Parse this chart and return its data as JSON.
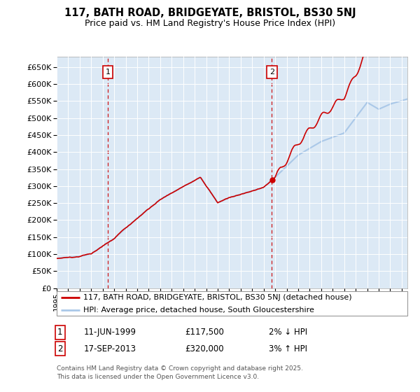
{
  "title_line1": "117, BATH ROAD, BRIDGEYATE, BRISTOL, BS30 5NJ",
  "title_line2": "Price paid vs. HM Land Registry's House Price Index (HPI)",
  "sale1_date": "11-JUN-1999",
  "sale1_price": "£117,500",
  "sale1_note": "2% ↓ HPI",
  "sale2_date": "17-SEP-2013",
  "sale2_price": "£320,000",
  "sale2_note": "3% ↑ HPI",
  "line1_label": "117, BATH ROAD, BRIDGEYATE, BRISTOL, BS30 5NJ (detached house)",
  "line2_label": "HPI: Average price, detached house, South Gloucestershire",
  "footer_line1": "Contains HM Land Registry data © Crown copyright and database right 2025.",
  "footer_line2": "This data is licensed under the Open Government Licence v3.0.",
  "red_color": "#cc0000",
  "blue_color": "#aac8e8",
  "plot_bg": "#dce9f5",
  "sale1_year": 1999.44,
  "sale2_year": 2013.72,
  "ylim_min": 0,
  "ylim_max": 680000,
  "xlim_min": 1995,
  "xlim_max": 2025.5
}
